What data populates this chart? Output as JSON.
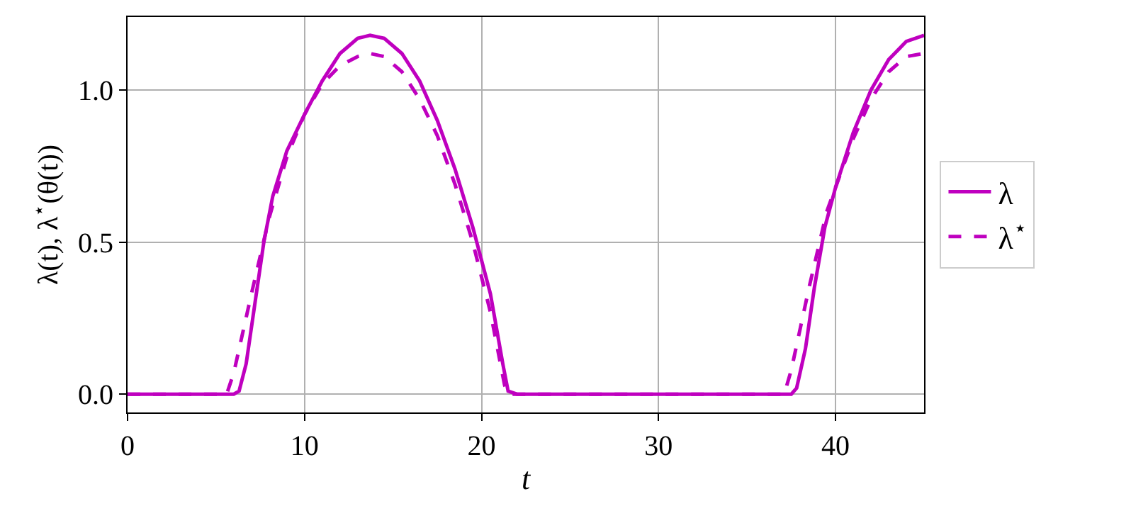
{
  "chart_data": {
    "type": "line",
    "xlabel": "t",
    "ylabel": "λ(t), λ$^{⋆}$(θ(t))",
    "xlim": [
      0,
      45
    ],
    "ylim": [
      -0.06,
      1.24
    ],
    "xticks": [
      0,
      10,
      20,
      30,
      40
    ],
    "yticks": [
      {
        "value": 0,
        "label": "0.0"
      },
      {
        "value": 0.5,
        "label": "0.5"
      },
      {
        "value": 1,
        "label": "1.0"
      }
    ],
    "grid": true,
    "legend": "right",
    "marker": "none",
    "series": [
      {
        "name": "λ",
        "color": "#bf00bf",
        "line_style": "solid",
        "x": [
          0,
          6,
          6.3,
          6.7,
          7.2,
          7.7,
          8.2,
          9,
          10,
          11,
          12,
          13,
          13.7,
          14.5,
          15.5,
          16.5,
          17.5,
          18.5,
          19.5,
          20.5,
          21.2,
          21.5,
          22,
          37.5,
          37.8,
          38.3,
          38.8,
          39.4,
          40,
          41,
          42,
          43,
          44,
          45
        ],
        "values": [
          0,
          0,
          0.01,
          0.1,
          0.3,
          0.5,
          0.65,
          0.8,
          0.92,
          1.03,
          1.12,
          1.17,
          1.18,
          1.17,
          1.12,
          1.03,
          0.9,
          0.74,
          0.55,
          0.33,
          0.1,
          0.01,
          0,
          0,
          0.02,
          0.15,
          0.35,
          0.55,
          0.68,
          0.86,
          1.0,
          1.1,
          1.16,
          1.18
        ]
      },
      {
        "name": "λ$^{⋆}$",
        "color": "#bf00bf",
        "line_style": "dashed",
        "x": [
          0,
          5.6,
          6,
          7,
          8,
          9,
          10,
          11,
          12,
          13,
          13.7,
          14.5,
          15.5,
          16.5,
          17.5,
          18.5,
          19.5,
          20.5,
          21.3,
          21.5,
          37.1,
          37.5,
          38.5,
          39.5,
          40,
          41,
          42,
          43,
          44,
          45
        ],
        "values": [
          0,
          0,
          0.07,
          0.33,
          0.58,
          0.78,
          0.92,
          1.02,
          1.08,
          1.11,
          1.12,
          1.11,
          1.06,
          0.97,
          0.85,
          0.69,
          0.5,
          0.27,
          0.03,
          0,
          0,
          0.08,
          0.35,
          0.6,
          0.68,
          0.84,
          0.97,
          1.06,
          1.11,
          1.12
        ]
      }
    ]
  }
}
